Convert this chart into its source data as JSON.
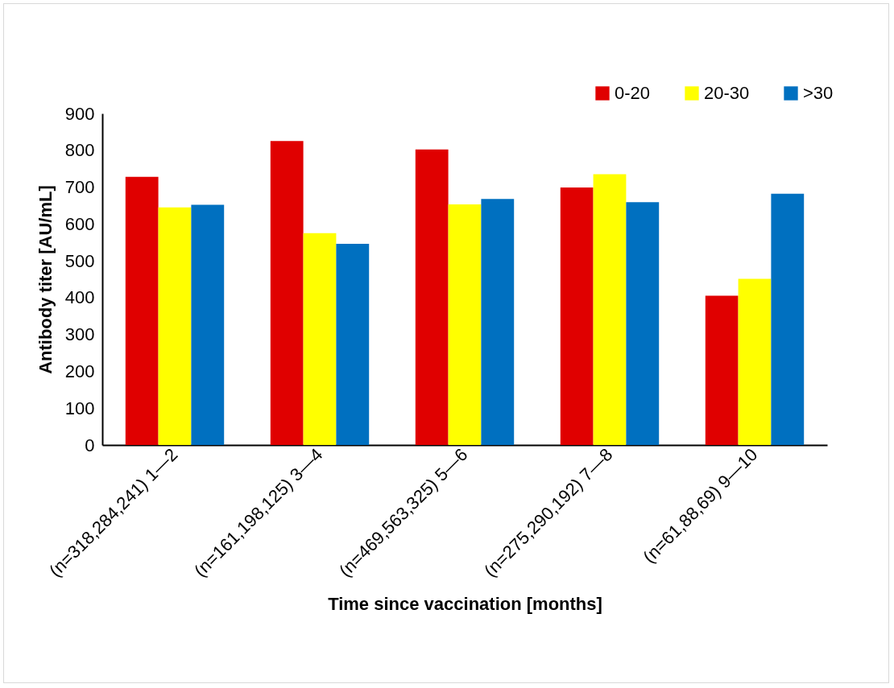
{
  "chart_data": {
    "type": "bar",
    "xlabel": "Time since vaccination [months]",
    "ylabel": "Antibody titer [AU/mL]",
    "categories": [
      "(n=318,284,241) 1—2",
      "(n=161,198,125) 3—4",
      "(n=469,563,325) 5—6",
      "(n=275,290,192) 7—8",
      "(n=61,88,69) 9—10"
    ],
    "series": [
      {
        "name": "0-20",
        "color": "#e00000",
        "values": [
          728,
          825,
          802,
          699,
          405
        ]
      },
      {
        "name": "20-30",
        "color": "#ffff00",
        "values": [
          645,
          575,
          653,
          735,
          451
        ]
      },
      {
        "name": ">30",
        "color": "#0070c0",
        "values": [
          652,
          546,
          668,
          659,
          682
        ]
      }
    ],
    "ylim": [
      0,
      900
    ],
    "yticks": [
      0,
      100,
      200,
      300,
      400,
      500,
      600,
      700,
      800,
      900
    ],
    "grid": false,
    "legend": "top right"
  }
}
